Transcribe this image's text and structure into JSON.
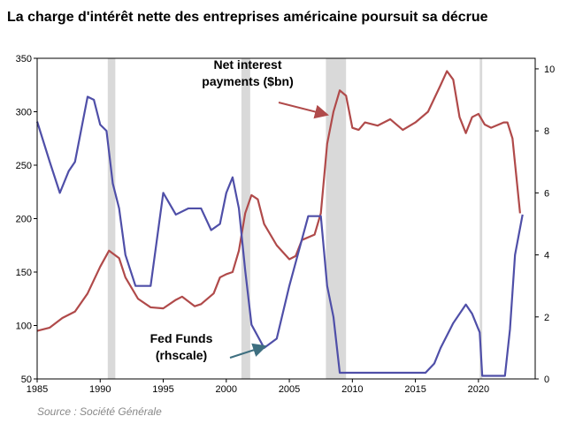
{
  "chart_data": {
    "type": "line",
    "title": "La charge d'intérêt nette des entreprises américaine poursuit sa décrue",
    "source": "Source : Société Générale",
    "xlim": [
      1985,
      2024.5
    ],
    "xticks": [
      1985,
      1990,
      1995,
      2000,
      2005,
      2010,
      2015,
      2020
    ],
    "ylim": [
      50,
      350
    ],
    "yticks": [
      50,
      100,
      150,
      200,
      250,
      300,
      350
    ],
    "y2lim": [
      0,
      10.34
    ],
    "y2ticks": [
      0,
      2,
      4,
      6,
      8,
      10
    ],
    "shaded_ranges": [
      [
        1990.6,
        1991.2
      ],
      [
        2001.2,
        2001.9
      ],
      [
        2007.9,
        2009.5
      ],
      [
        2020.1,
        2020.3
      ]
    ],
    "shade_color": "#d9d9d9",
    "series": [
      {
        "color": "#b04a4a",
        "axis": "y",
        "x": [
          1985,
          1986,
          1987,
          1988,
          1989,
          1990,
          1990.7,
          1991.5,
          1992,
          1993,
          1994,
          1995,
          1996,
          1996.5,
          1997.5,
          1998,
          1999,
          1999.5,
          2000,
          2000.5,
          2001,
          2001.5,
          2002,
          2002.5,
          2003,
          2004,
          2005,
          2005.5,
          2006,
          2007,
          2007.5,
          2008,
          2008.5,
          2009,
          2009.5,
          2010,
          2010.5,
          2011,
          2012,
          2013,
          2014,
          2015,
          2016,
          2017,
          2017.5,
          2018,
          2018.5,
          2019,
          2019.5,
          2020,
          2020.5,
          2021,
          2022,
          2022.3,
          2022.7,
          2023,
          2023.3
        ],
        "values": [
          95,
          98,
          107,
          113,
          130,
          155,
          170,
          163,
          145,
          125,
          117,
          116,
          124,
          127,
          118,
          120,
          130,
          145,
          148,
          150,
          170,
          205,
          222,
          218,
          195,
          175,
          162,
          165,
          180,
          185,
          205,
          270,
          300,
          320,
          315,
          285,
          283,
          290,
          287,
          293,
          283,
          290,
          300,
          325,
          338,
          330,
          295,
          280,
          295,
          298,
          288,
          285,
          290,
          290,
          275,
          240,
          205
        ]
      },
      {
        "color": "#4f4fa8",
        "axis": "y2",
        "x": [
          1985,
          1986,
          1986.8,
          1987.5,
          1988,
          1989,
          1989.5,
          1990,
          1990.5,
          1991,
          1991.5,
          1992,
          1992.8,
          1993,
          1994,
          1994.5,
          1995,
          1996,
          1997,
          1998,
          1998.8,
          1999.5,
          2000,
          2000.5,
          2001,
          2001.5,
          2002,
          2003,
          2004,
          2005,
          2006,
          2006.5,
          2007.5,
          2008,
          2008.5,
          2009,
          2015.8,
          2016.5,
          2017,
          2018,
          2019,
          2019.5,
          2020.1,
          2020.3,
          2022.1,
          2022.5,
          2022.9,
          2023.5
        ],
        "values": [
          8.3,
          7,
          6,
          6.7,
          7,
          9.1,
          9,
          8.2,
          8,
          6.3,
          5.5,
          4,
          3,
          3,
          3,
          4.5,
          6,
          5.3,
          5.5,
          5.5,
          4.8,
          5,
          6,
          6.5,
          5.5,
          3.5,
          1.75,
          1,
          1.3,
          3,
          4.5,
          5.25,
          5.25,
          3,
          2,
          0.2,
          0.2,
          0.5,
          1,
          1.8,
          2.4,
          2.1,
          1.5,
          0.1,
          0.1,
          1.6,
          4,
          5.3
        ]
      }
    ],
    "annotations": [
      {
        "text": [
          "Net interest",
          "payments ($bn)"
        ]
      },
      {
        "text": [
          "Fed Funds",
          "(rhscale)"
        ]
      }
    ]
  }
}
